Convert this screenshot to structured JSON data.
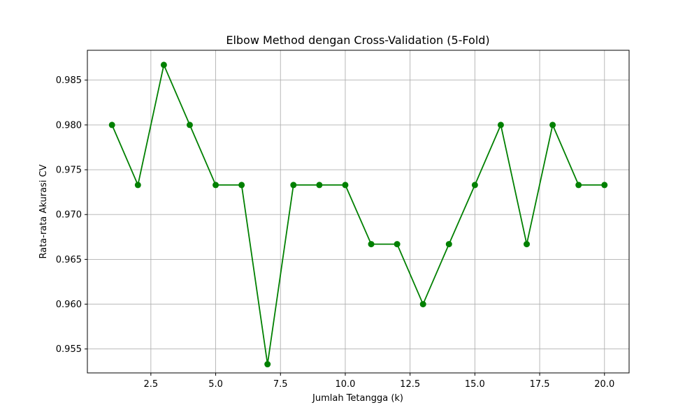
{
  "chart_data": {
    "type": "line",
    "title": "Elbow Method dengan Cross-Validation (5-Fold)",
    "xlabel": "Jumlah Tetangga (k)",
    "ylabel": "Rata-rata Akurasi CV",
    "xlim": [
      0.05,
      20.95
    ],
    "ylim": [
      0.95233,
      0.98833
    ],
    "xticks": [
      2.5,
      5.0,
      7.5,
      10.0,
      12.5,
      15.0,
      17.5,
      20.0
    ],
    "xtick_labels": [
      "2.5",
      "5.0",
      "7.5",
      "10.0",
      "12.5",
      "15.0",
      "17.5",
      "20.0"
    ],
    "yticks": [
      0.955,
      0.96,
      0.965,
      0.97,
      0.975,
      0.98,
      0.985
    ],
    "ytick_labels": [
      "0.955",
      "0.960",
      "0.965",
      "0.970",
      "0.975",
      "0.980",
      "0.985"
    ],
    "grid": true,
    "color": "#008000",
    "marker": "circle",
    "x": [
      1,
      2,
      3,
      4,
      5,
      6,
      7,
      8,
      9,
      10,
      11,
      12,
      13,
      14,
      15,
      16,
      17,
      18,
      19,
      20
    ],
    "y": [
      0.98,
      0.9733,
      0.9867,
      0.98,
      0.9733,
      0.9733,
      0.9533,
      0.9733,
      0.9733,
      0.9733,
      0.9667,
      0.9667,
      0.96,
      0.9667,
      0.9733,
      0.98,
      0.9667,
      0.98,
      0.9733,
      0.9733
    ]
  }
}
